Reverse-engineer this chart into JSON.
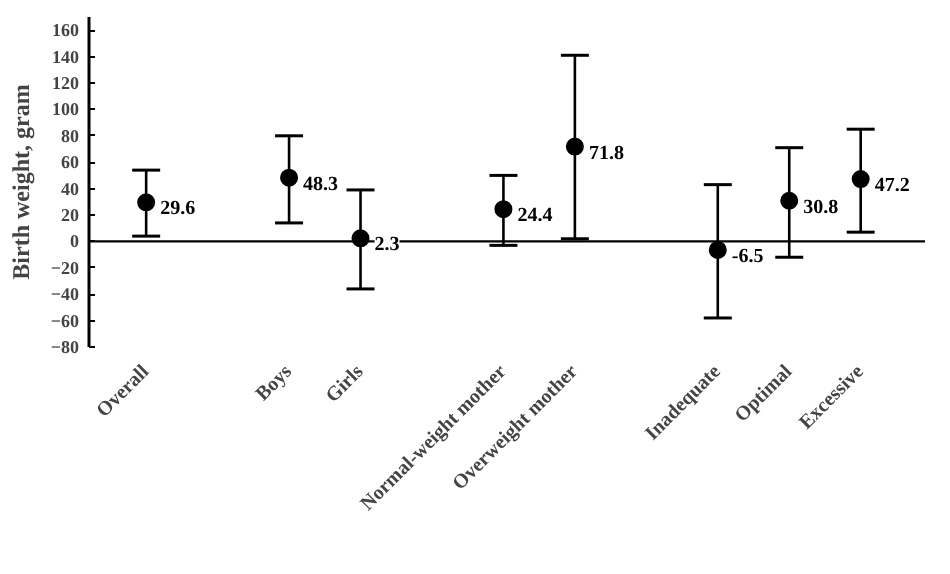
{
  "chart_data": {
    "type": "scatter",
    "ylabel": "Birth weight, gram",
    "categories": [
      "Overall",
      null,
      "Boys",
      "Girls",
      null,
      "Normal-weight mother",
      "Overweight mother",
      null,
      "Inadequate",
      "Optimal",
      "Excessive"
    ],
    "values": [
      29.6,
      null,
      48.3,
      2.3,
      null,
      24.4,
      71.8,
      null,
      -6.5,
      30.8,
      47.2
    ],
    "errors": [
      [
        4,
        54
      ],
      null,
      [
        14,
        80
      ],
      [
        -36,
        39
      ],
      null,
      [
        -3,
        50
      ],
      [
        2,
        141
      ],
      null,
      [
        -58,
        43
      ],
      [
        -12,
        71
      ],
      [
        7,
        85
      ]
    ],
    "color": "#000000",
    "marker": "circle",
    "data_labels": true,
    "ref_lines": [
      {
        "axis": "y",
        "value": 0,
        "color": "#000000"
      }
    ],
    "ylim": [
      -80,
      170
    ],
    "yticks": [
      -80,
      -60,
      -40,
      -20,
      0,
      20,
      40,
      60,
      80,
      100,
      120,
      140,
      160
    ],
    "grid": false
  }
}
